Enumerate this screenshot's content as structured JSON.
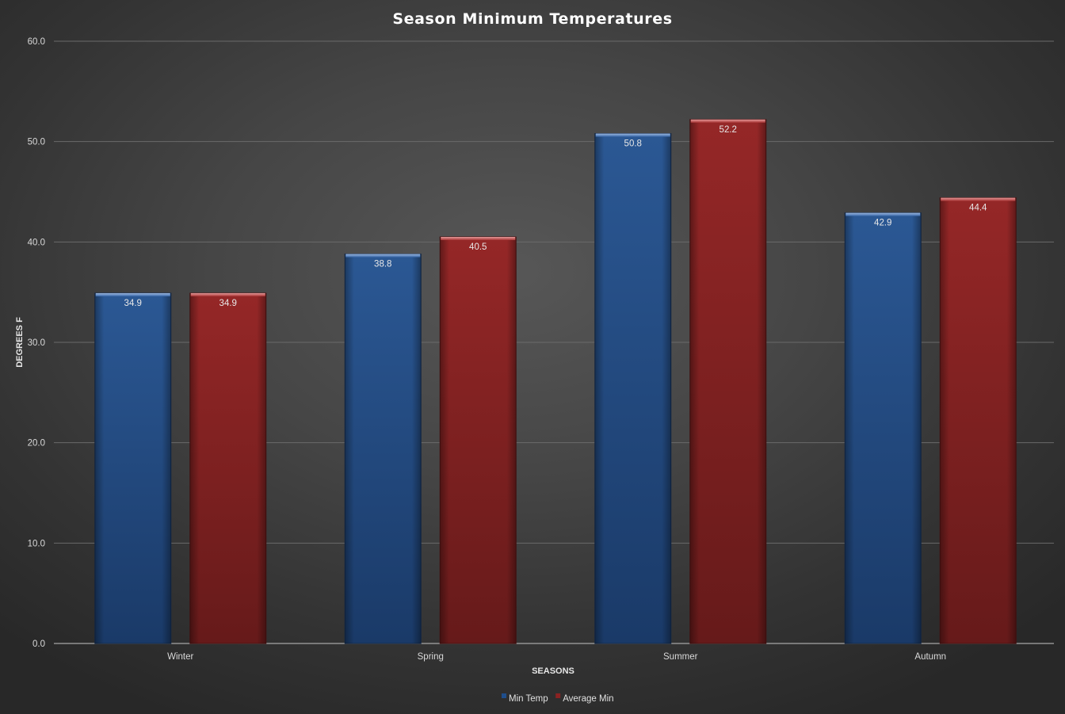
{
  "chart_data": {
    "type": "bar",
    "title": "Season Minimum Temperatures",
    "xlabel": "SEASONS",
    "ylabel": "DEGREES F",
    "categories": [
      "Winter",
      "Spring",
      "Summer",
      "Autumn"
    ],
    "series": [
      {
        "name": "Min Temp",
        "values": [
          34.9,
          38.8,
          50.8,
          42.9
        ],
        "color": "#1f4e8c"
      },
      {
        "name": "Average Min",
        "values": [
          34.9,
          40.5,
          52.2,
          44.4
        ],
        "color": "#8b2222"
      }
    ],
    "ylim": [
      0,
      60
    ],
    "yticks": [
      "0.0",
      "10.0",
      "20.0",
      "30.0",
      "40.0",
      "50.0",
      "60.0"
    ],
    "data_label_format": "one-decimal",
    "grid": true,
    "legend_position": "bottom"
  }
}
